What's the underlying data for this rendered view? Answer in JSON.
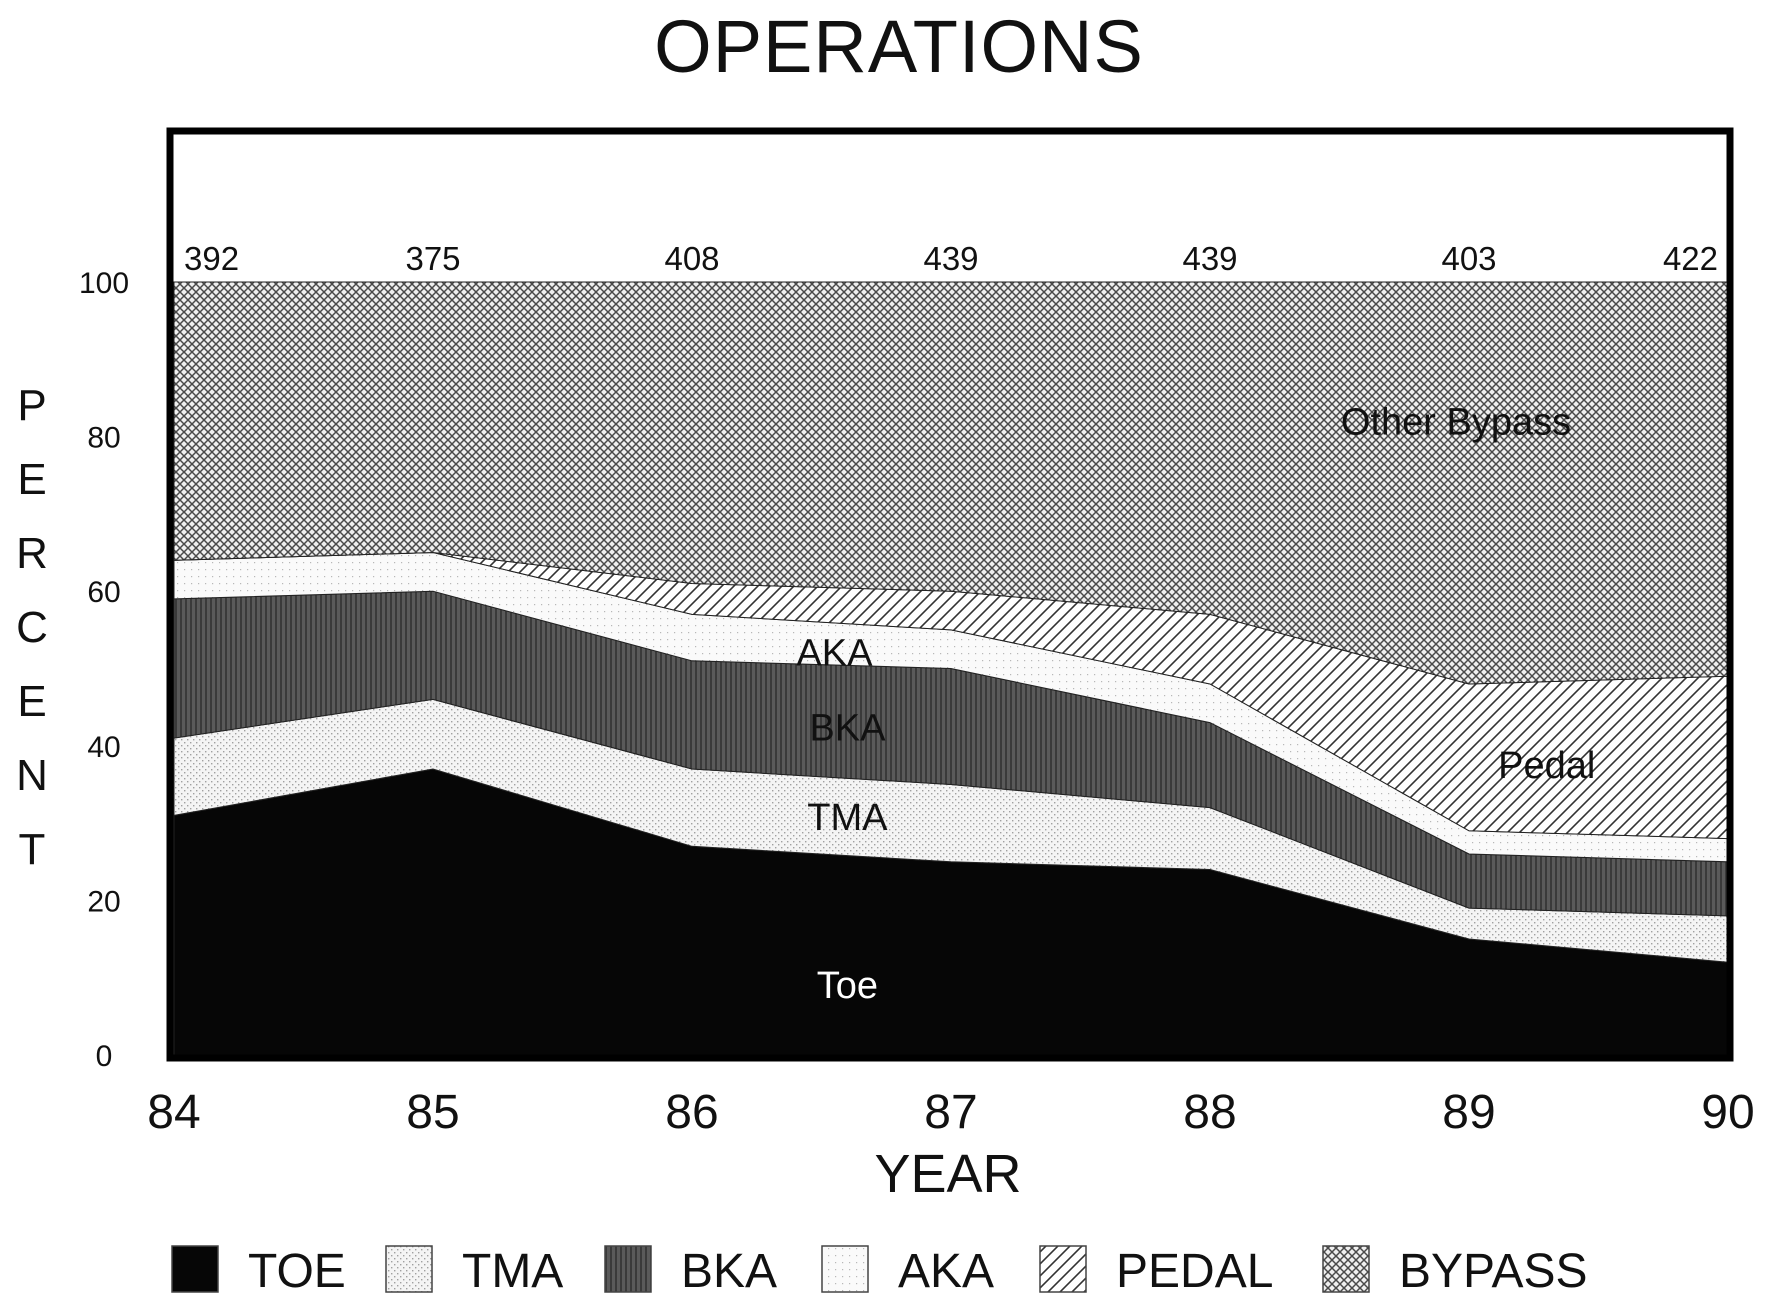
{
  "chart_data": {
    "type": "area",
    "title": "OPERATIONS",
    "xlabel": "YEAR",
    "ylabel": "PERCENT",
    "x": [
      "84",
      "85",
      "86",
      "87",
      "88",
      "89",
      "90"
    ],
    "y_ticks": [
      "0",
      "20",
      "40",
      "60",
      "80",
      "100"
    ],
    "ylim": [
      0,
      100
    ],
    "stacked": true,
    "grid": false,
    "legend_position": "bottom",
    "case_counts": [
      "392",
      "375",
      "408",
      "439",
      "439",
      "403",
      "422"
    ],
    "series": [
      {
        "name": "TOE",
        "label": "Toe",
        "values": [
          31,
          37,
          27,
          25,
          24,
          15,
          12
        ]
      },
      {
        "name": "TMA",
        "label": "TMA",
        "values": [
          10,
          9,
          10,
          10,
          8,
          4,
          6
        ]
      },
      {
        "name": "BKA",
        "label": "BKA",
        "values": [
          18,
          14,
          14,
          15,
          11,
          7,
          7
        ]
      },
      {
        "name": "AKA",
        "label": "AKA",
        "values": [
          5,
          5,
          6,
          5,
          5,
          3,
          3
        ]
      },
      {
        "name": "PEDAL",
        "label": "Pedal",
        "values": [
          0,
          0,
          4,
          5,
          9,
          19,
          21
        ]
      },
      {
        "name": "BYPASS",
        "label": "Other Bypass",
        "values": [
          36,
          35,
          39,
          40,
          43,
          52,
          51
        ]
      }
    ]
  }
}
